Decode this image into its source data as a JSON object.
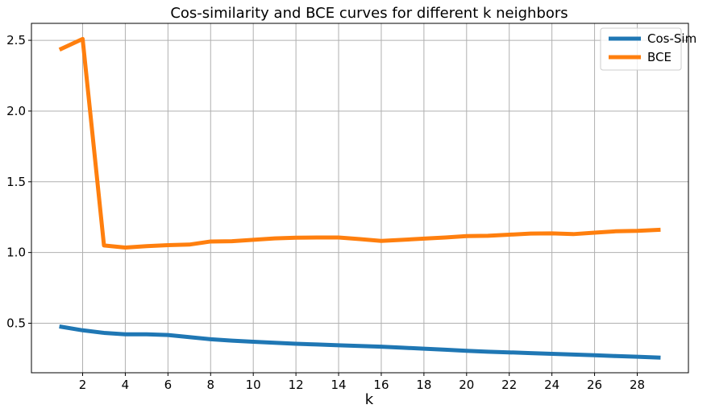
{
  "chart_data": {
    "type": "line",
    "title": "Cos-similarity and BCE curves for different k neighbors",
    "xlabel": "k",
    "ylabel": "",
    "x": [
      1,
      2,
      3,
      4,
      5,
      6,
      7,
      8,
      9,
      10,
      11,
      12,
      13,
      14,
      15,
      16,
      17,
      18,
      19,
      20,
      21,
      22,
      23,
      24,
      25,
      26,
      27,
      28,
      29
    ],
    "xticks": [
      2,
      4,
      6,
      8,
      10,
      12,
      14,
      16,
      18,
      20,
      22,
      24,
      26,
      28
    ],
    "yticks": [
      0.5,
      1.0,
      1.5,
      2.0,
      2.5
    ],
    "ytick_labels": [
      "0.5",
      "1.0",
      "1.5",
      "2.0",
      "2.5"
    ],
    "xlim": [
      -0.4,
      30.4
    ],
    "ylim": [
      0.15,
      2.62
    ],
    "grid": true,
    "legend_position": "top-right",
    "series": [
      {
        "name": "Cos-Sim",
        "color": "#1f77b4",
        "values": [
          0.475,
          0.45,
          0.432,
          0.422,
          0.422,
          0.417,
          0.402,
          0.387,
          0.377,
          0.369,
          0.362,
          0.355,
          0.35,
          0.344,
          0.339,
          0.334,
          0.327,
          0.32,
          0.313,
          0.305,
          0.299,
          0.294,
          0.289,
          0.284,
          0.279,
          0.274,
          0.268,
          0.263,
          0.257
        ]
      },
      {
        "name": "BCE",
        "color": "#ff7f0e",
        "values": [
          2.44,
          2.51,
          1.05,
          1.035,
          1.045,
          1.052,
          1.056,
          1.078,
          1.08,
          1.09,
          1.1,
          1.105,
          1.106,
          1.106,
          1.095,
          1.082,
          1.09,
          1.098,
          1.106,
          1.116,
          1.118,
          1.126,
          1.134,
          1.135,
          1.13,
          1.14,
          1.15,
          1.153,
          1.16
        ]
      }
    ]
  }
}
